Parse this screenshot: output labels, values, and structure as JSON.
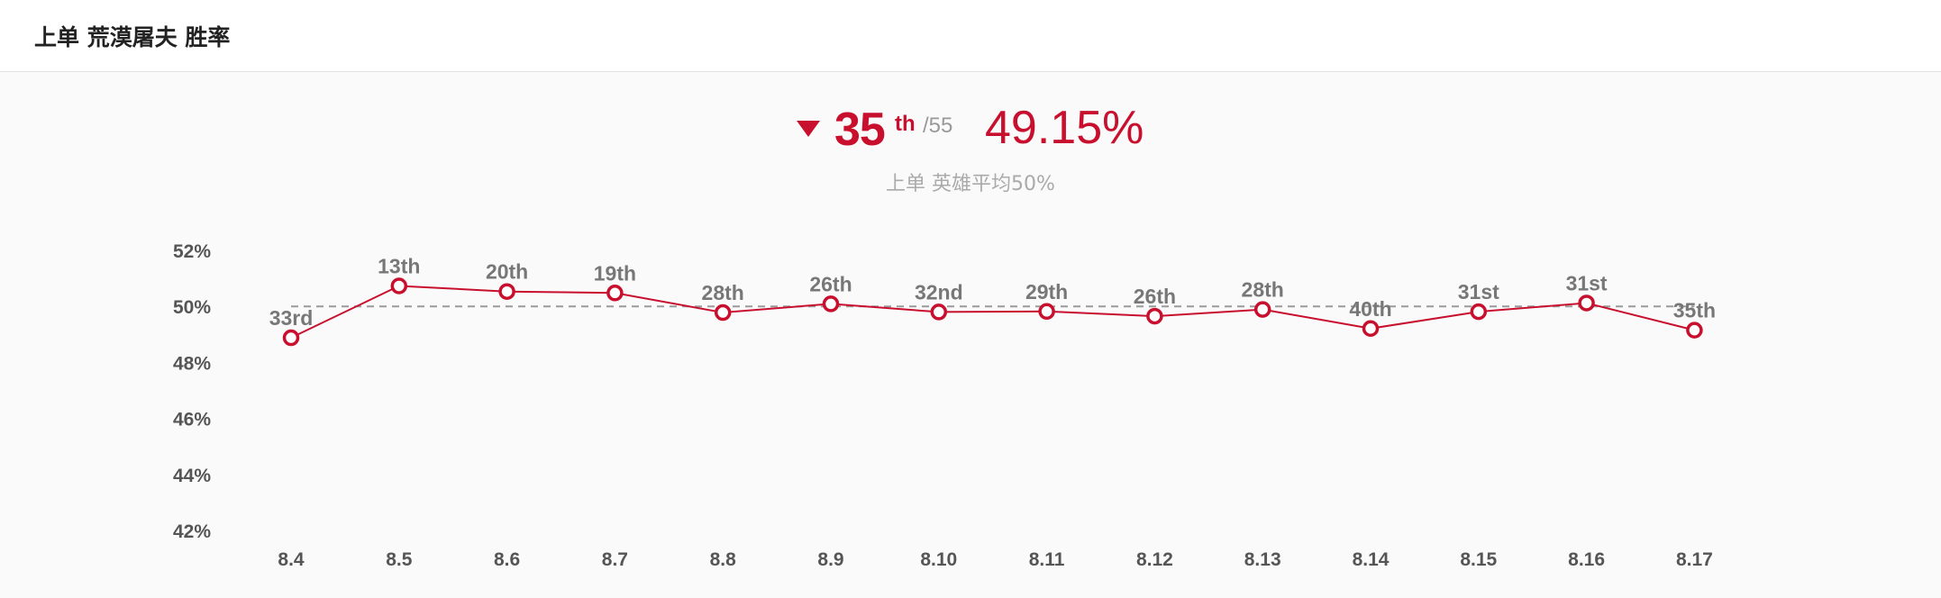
{
  "header": {
    "title": "上单 荒漠屠夫 胜率"
  },
  "summary": {
    "trend": "down",
    "trend_color": "#c8102e",
    "rank": "35",
    "rank_suffix": "th",
    "rank_total": "/55",
    "winrate": "49.15%",
    "subtitle": "上单 英雄平均50%"
  },
  "chart_data": {
    "type": "line",
    "categories": [
      "8.4",
      "8.5",
      "8.6",
      "8.7",
      "8.8",
      "8.9",
      "8.10",
      "8.11",
      "8.12",
      "8.13",
      "8.14",
      "8.15",
      "8.16",
      "8.17"
    ],
    "series": [
      {
        "values": [
          48.88,
          50.73,
          50.53,
          50.48,
          49.78,
          50.09,
          49.8,
          49.82,
          49.65,
          49.89,
          49.21,
          49.81,
          50.12,
          49.15
        ],
        "labels": [
          "33rd",
          "13th",
          "20th",
          "19th",
          "28th",
          "26th",
          "32nd",
          "29th",
          "26th",
          "28th",
          "40th",
          "31st",
          "31st",
          "35th"
        ],
        "color": "#c8102e"
      }
    ],
    "reference_line": {
      "value": 50,
      "style": "dashed",
      "color": "#9a9a9a"
    },
    "yticks": [
      "52%",
      "50%",
      "48%",
      "46%",
      "44%",
      "42%"
    ],
    "ylim": [
      42,
      52
    ],
    "title": "",
    "xlabel": "",
    "ylabel": "",
    "grid": false,
    "legend": "none"
  }
}
